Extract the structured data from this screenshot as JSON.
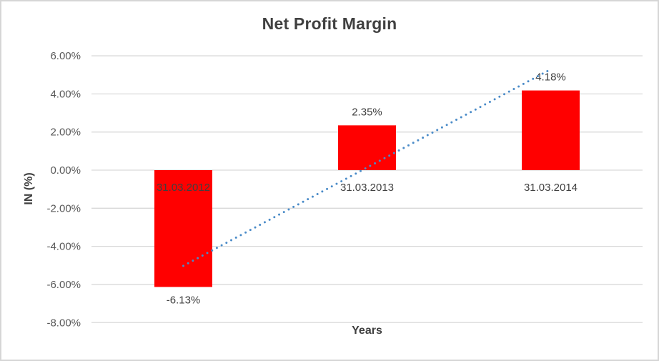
{
  "chart": {
    "title": "Net Profit Margin",
    "y_axis_title": "IN (%)",
    "x_axis_title": "Years"
  },
  "chart_data": {
    "type": "bar",
    "title": "Net Profit Margin",
    "xlabel": "Years",
    "ylabel": "IN (%)",
    "categories": [
      "31.03.2012",
      "31.03.2013",
      "31.03.2014"
    ],
    "values": [
      -6.13,
      2.35,
      4.18
    ],
    "value_labels": [
      "-6.13%",
      "2.35%",
      "4.18%"
    ],
    "ylim": [
      -8,
      6
    ],
    "ytick_step": 2,
    "ytick_labels": [
      "6.00%",
      "4.00%",
      "2.00%",
      "0.00%",
      "-2.00%",
      "-4.00%",
      "-6.00%",
      "-8.00%"
    ],
    "grid": true,
    "legend": false,
    "bar_color": "#FF0000",
    "trendline": {
      "type": "linear",
      "style": "dotted",
      "color": "#4A8BC8",
      "start_value": -5.02,
      "end_value": 5.29
    },
    "colors": {
      "gridline": "#D9D9D9",
      "title_text": "#404040",
      "tick_text": "#595959",
      "label_text": "#404040"
    }
  }
}
